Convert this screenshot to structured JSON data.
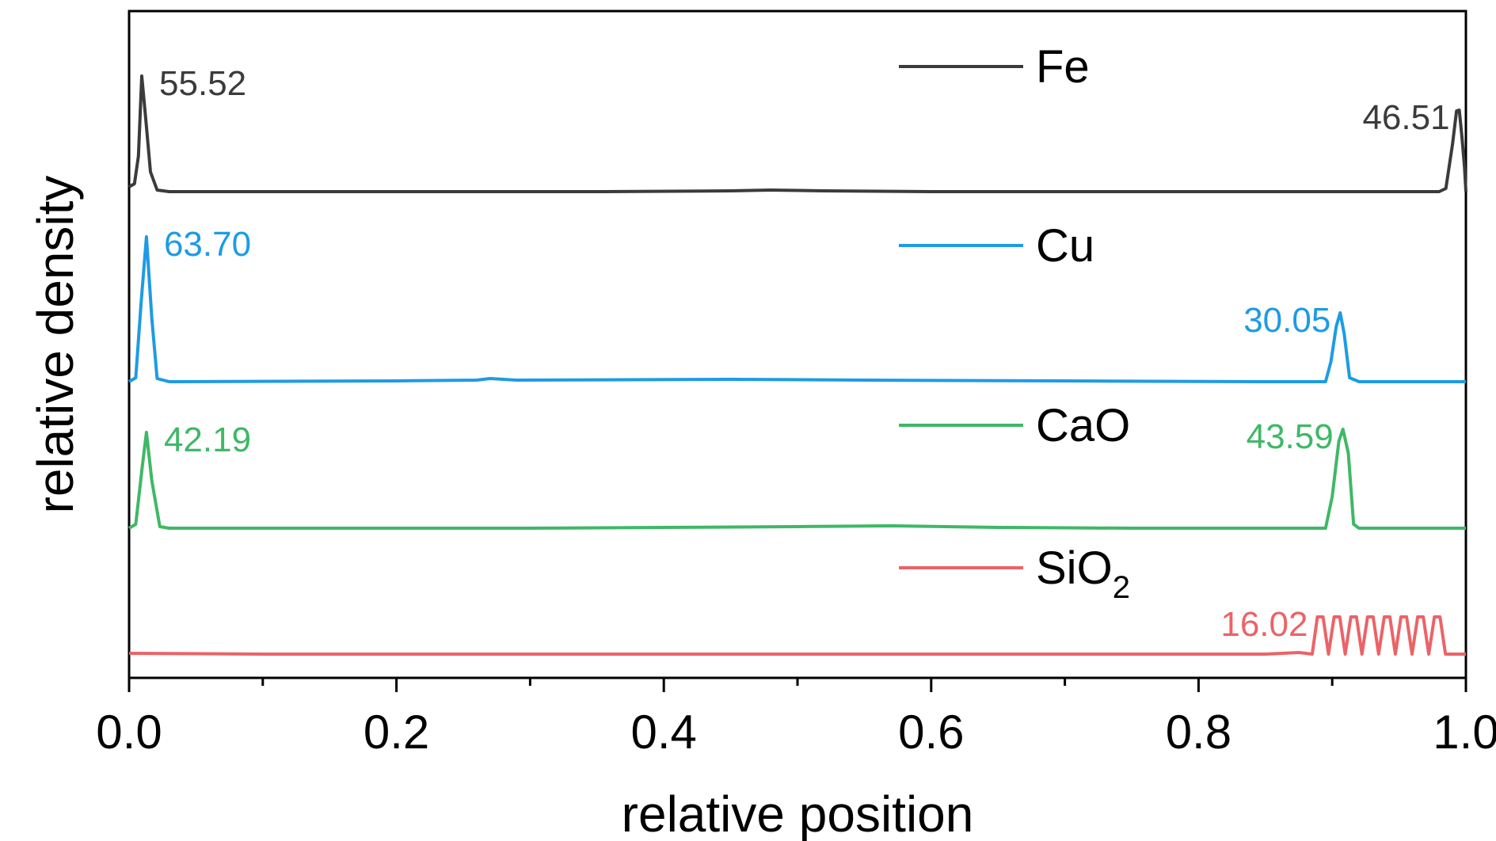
{
  "chart_data": {
    "type": "line",
    "xlabel": "relative position",
    "ylabel": "relative density",
    "xlim": [
      0,
      1
    ],
    "x_ticks": [
      "0.0",
      "0.2",
      "0.4",
      "0.6",
      "0.8",
      "1.0"
    ],
    "y_ticks_visible": false,
    "grid": false,
    "legend_position": "top-center",
    "series": [
      {
        "name": "Fe",
        "name_main": "Fe",
        "name_sub": "",
        "color": "#3b3b3b",
        "points": [
          [
            0,
            6
          ],
          [
            0.004,
            10
          ],
          [
            0.007,
            45
          ],
          [
            0.0095,
            146
          ],
          [
            0.012,
            100
          ],
          [
            0.016,
            25
          ],
          [
            0.021,
            2
          ],
          [
            0.03,
            0
          ],
          [
            0.2,
            0
          ],
          [
            0.35,
            0
          ],
          [
            0.45,
            1
          ],
          [
            0.48,
            2
          ],
          [
            0.52,
            1
          ],
          [
            0.6,
            0
          ],
          [
            0.8,
            0
          ],
          [
            0.98,
            0
          ],
          [
            0.985,
            4
          ],
          [
            0.99,
            60
          ],
          [
            0.993,
            102
          ],
          [
            0.995,
            103
          ],
          [
            0.997,
            70
          ],
          [
            0.999,
            30
          ],
          [
            1.0,
            0
          ]
        ],
        "annotations": [
          {
            "text": "55.52",
            "x": 0.0095,
            "y": 146,
            "anchor": "right"
          },
          {
            "text": "46.51",
            "x": 0.995,
            "y": 103,
            "anchor": "left"
          }
        ]
      },
      {
        "name": "Cu",
        "name_main": "Cu",
        "name_sub": "",
        "color": "#1e9be4",
        "points": [
          [
            0,
            0
          ],
          [
            0.005,
            5
          ],
          [
            0.009,
            100
          ],
          [
            0.013,
            183
          ],
          [
            0.017,
            80
          ],
          [
            0.021,
            4
          ],
          [
            0.03,
            0
          ],
          [
            0.2,
            1
          ],
          [
            0.26,
            2
          ],
          [
            0.27,
            4
          ],
          [
            0.29,
            2
          ],
          [
            0.45,
            3
          ],
          [
            0.55,
            2
          ],
          [
            0.7,
            1
          ],
          [
            0.85,
            0
          ],
          [
            0.895,
            0
          ],
          [
            0.899,
            25
          ],
          [
            0.903,
            70
          ],
          [
            0.906,
            87
          ],
          [
            0.909,
            60
          ],
          [
            0.913,
            5
          ],
          [
            0.92,
            0
          ],
          [
            1.0,
            0
          ]
        ],
        "annotations": [
          {
            "text": "63.70",
            "x": 0.013,
            "y": 183,
            "anchor": "right"
          },
          {
            "text": "30.05",
            "x": 0.906,
            "y": 87,
            "anchor": "left"
          }
        ]
      },
      {
        "name": "CaO",
        "name_main": "CaO",
        "name_sub": "",
        "color": "#3fb867",
        "points": [
          [
            0,
            0
          ],
          [
            0.005,
            5
          ],
          [
            0.01,
            80
          ],
          [
            0.013,
            121
          ],
          [
            0.017,
            60
          ],
          [
            0.023,
            2
          ],
          [
            0.03,
            0
          ],
          [
            0.3,
            0
          ],
          [
            0.4,
            1
          ],
          [
            0.5,
            2
          ],
          [
            0.57,
            3
          ],
          [
            0.65,
            1
          ],
          [
            0.75,
            0
          ],
          [
            0.895,
            0
          ],
          [
            0.9,
            40
          ],
          [
            0.905,
            110
          ],
          [
            0.908,
            125
          ],
          [
            0.912,
            95
          ],
          [
            0.916,
            5
          ],
          [
            0.92,
            0
          ],
          [
            1.0,
            0
          ]
        ],
        "annotations": [
          {
            "text": "42.19",
            "x": 0.013,
            "y": 121,
            "anchor": "right"
          },
          {
            "text": "43.59",
            "x": 0.908,
            "y": 125,
            "anchor": "left"
          }
        ]
      },
      {
        "name": "SiO₂",
        "name_main": "SiO",
        "name_sub": "2",
        "color": "#eb6367",
        "points": [
          [
            0,
            1
          ],
          [
            0.1,
            0
          ],
          [
            0.3,
            0
          ],
          [
            0.5,
            0
          ],
          [
            0.7,
            0
          ],
          [
            0.85,
            0
          ],
          [
            0.875,
            2
          ],
          [
            0.885,
            0
          ],
          [
            0.8889,
            47
          ],
          [
            0.8931,
            47
          ],
          [
            0.8972,
            0
          ],
          [
            0.9014,
            47
          ],
          [
            0.9056,
            47
          ],
          [
            0.9097,
            0
          ],
          [
            0.9139,
            47
          ],
          [
            0.9181,
            47
          ],
          [
            0.9222,
            0
          ],
          [
            0.9264,
            47
          ],
          [
            0.9306,
            47
          ],
          [
            0.9347,
            0
          ],
          [
            0.9389,
            47
          ],
          [
            0.9431,
            47
          ],
          [
            0.9472,
            0
          ],
          [
            0.9514,
            47
          ],
          [
            0.9556,
            47
          ],
          [
            0.9597,
            0
          ],
          [
            0.9639,
            47
          ],
          [
            0.9681,
            47
          ],
          [
            0.9722,
            0
          ],
          [
            0.9764,
            47
          ],
          [
            0.9806,
            47
          ],
          [
            0.9847,
            0
          ],
          [
            1.0,
            0
          ]
        ],
        "annotations": [
          {
            "text": "16.02",
            "x": 0.8889,
            "y": 47,
            "anchor": "left"
          }
        ]
      }
    ]
  }
}
